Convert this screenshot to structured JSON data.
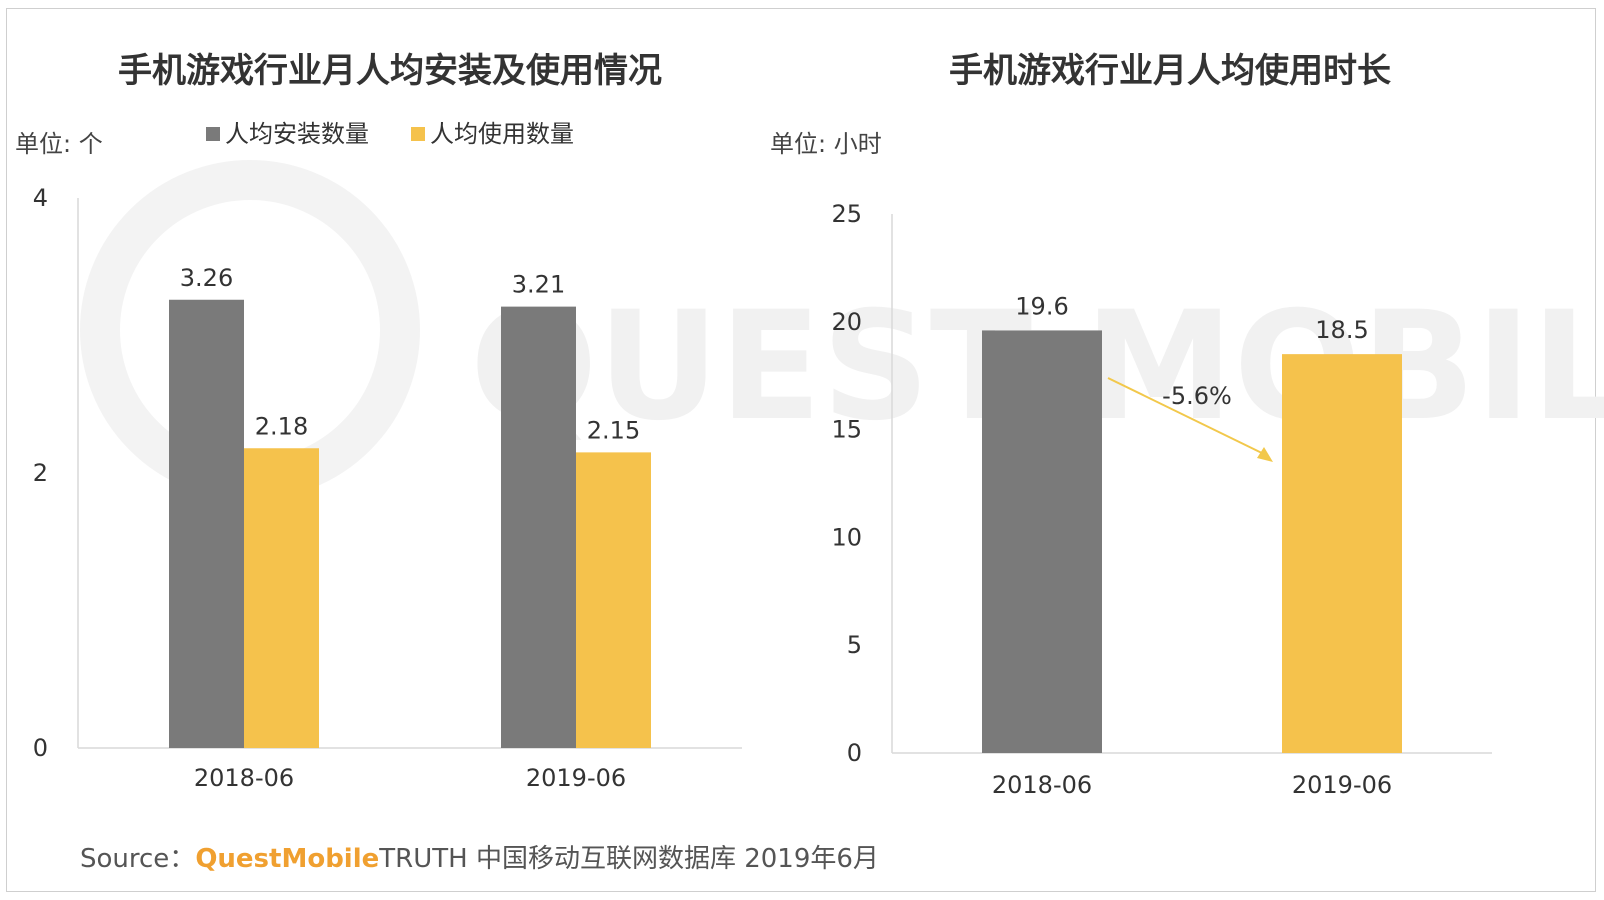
{
  "colors": {
    "gray": "#7a7a7a",
    "yellow": "#f5c24c",
    "axis": "#d9d9d9",
    "arrow": "#f2c84b",
    "brand": "#f0a030"
  },
  "watermark": "QUEST MOBILE",
  "chart_data": [
    {
      "type": "bar",
      "title": "手机游戏行业月人均安装及使用情况",
      "unit_label": "单位: 个",
      "categories": [
        "2018-06",
        "2019-06"
      ],
      "series": [
        {
          "name": "人均安装数量",
          "color": "#7a7a7a",
          "values": [
            3.26,
            3.21
          ],
          "labels": [
            "3.26",
            "3.21"
          ]
        },
        {
          "name": "人均使用数量",
          "color": "#f5c24c",
          "values": [
            2.18,
            2.15
          ],
          "labels": [
            "2.18",
            "2.15"
          ]
        }
      ],
      "ylim": [
        0,
        4
      ],
      "yticks": [
        "0",
        "2",
        "4"
      ],
      "legend": "top",
      "grid": false
    },
    {
      "type": "bar",
      "title": "手机游戏行业月人均使用时长",
      "unit_label": "单位: 小时",
      "categories": [
        "2018-06",
        "2019-06"
      ],
      "values": [
        19.6,
        18.5
      ],
      "labels": [
        "19.6",
        "18.5"
      ],
      "colors": [
        "#7a7a7a",
        "#f5c24c"
      ],
      "ylim": [
        0,
        25
      ],
      "yticks": [
        "0",
        "5",
        "10",
        "15",
        "20",
        "25"
      ],
      "annotation": "-5.6%",
      "grid": false
    }
  ],
  "source": {
    "prefix": "Source：",
    "brand": "QuestMobile",
    "rest": "TRUTH 中国移动互联网数据库 2019年6月"
  }
}
